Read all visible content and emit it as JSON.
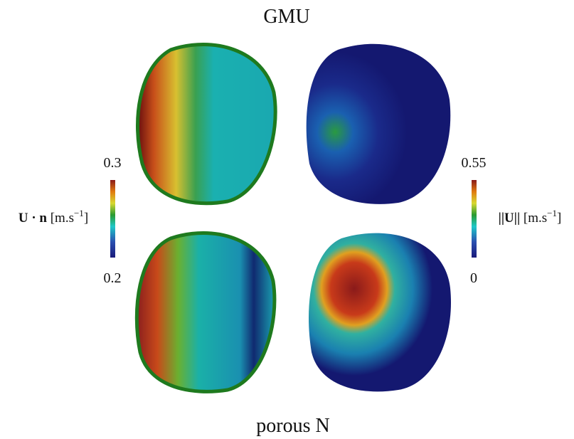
{
  "header": {
    "title": "GMU"
  },
  "footer": {
    "title": "porous N"
  },
  "colorbars": [
    {
      "symbol": "U · n",
      "unit_parts": [
        "[m.s",
        "−1",
        "]"
      ],
      "max": 0.3,
      "min": 0.2
    },
    {
      "symbol": "||U||",
      "unit_parts": [
        "[m.s",
        "−1",
        "]"
      ],
      "max": 0.55,
      "min": 0
    }
  ]
}
